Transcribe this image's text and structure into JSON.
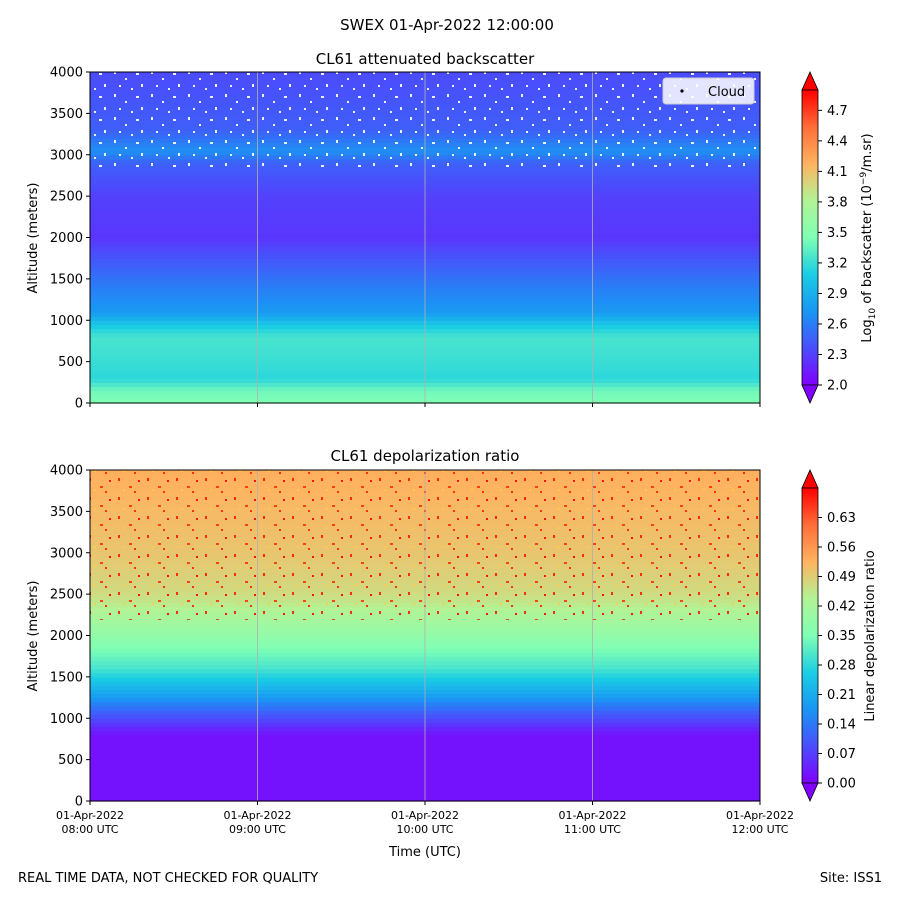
{
  "figure": {
    "suptitle": "SWEX 01-Apr-2022 12:00:00",
    "footer_left": "REAL TIME DATA, NOT CHECKED FOR QUALITY",
    "footer_right": "Site: ISS1"
  },
  "chart_data": [
    {
      "type": "heatmap",
      "title": "CL61 attenuated backscatter",
      "xlabel": "",
      "ylabel": "Altitude (meters)",
      "xlim": [
        "2022-04-01 08:00",
        "2022-04-01 12:00"
      ],
      "ylim": [
        0,
        4000
      ],
      "yticks": [
        0,
        500,
        1000,
        1500,
        2000,
        2500,
        3000,
        3500,
        4000
      ],
      "xticks": [],
      "grid": "vertical lines at x ticks",
      "legend": {
        "position": "top-right",
        "entries": [
          "Cloud"
        ]
      },
      "colorbar": {
        "label": "Log10 of backscatter (10^-9/m.sr)",
        "label_parts": {
          "a": "Log",
          "b": "10",
          "c": " of backscatter (10",
          "d": "−9",
          "e": "/m.sr)"
        },
        "range": [
          2.0,
          4.9
        ],
        "ticks": [
          "2.0",
          "2.3",
          "2.6",
          "2.9",
          "3.2",
          "3.5",
          "3.8",
          "4.1",
          "4.4",
          "4.7"
        ],
        "extend": "both",
        "colormap": "rainbow"
      },
      "profile": [
        {
          "altitude": 0,
          "value": 3.45
        },
        {
          "altitude": 150,
          "value": 3.4
        },
        {
          "altitude": 300,
          "value": 3.15
        },
        {
          "altitude": 500,
          "value": 3.2
        },
        {
          "altitude": 800,
          "value": 3.25
        },
        {
          "altitude": 950,
          "value": 3.05
        },
        {
          "altitude": 1100,
          "value": 2.75
        },
        {
          "altitude": 1500,
          "value": 2.55
        },
        {
          "altitude": 2000,
          "value": 2.25
        },
        {
          "altitude": 2500,
          "value": 2.3
        },
        {
          "altitude": 2900,
          "value": 2.45
        },
        {
          "altitude": 3050,
          "value": 2.7
        },
        {
          "altitude": 3300,
          "value": 2.45
        },
        {
          "altitude": 4000,
          "value": 2.35
        }
      ]
    },
    {
      "type": "heatmap",
      "title": "CL61 depolarization ratio",
      "xlabel": "Time (UTC)",
      "ylabel": "Altitude (meters)",
      "xlim": [
        "2022-04-01 08:00",
        "2022-04-01 12:00"
      ],
      "ylim": [
        0,
        4000
      ],
      "yticks": [
        0,
        500,
        1000,
        1500,
        2000,
        2500,
        3000,
        3500,
        4000
      ],
      "xticks": [
        {
          "line1": "01-Apr-2022",
          "line2": "08:00 UTC"
        },
        {
          "line1": "01-Apr-2022",
          "line2": "09:00 UTC"
        },
        {
          "line1": "01-Apr-2022",
          "line2": "10:00 UTC"
        },
        {
          "line1": "01-Apr-2022",
          "line2": "11:00 UTC"
        },
        {
          "line1": "01-Apr-2022",
          "line2": "12:00 UTC"
        }
      ],
      "grid": "vertical lines at x ticks",
      "colorbar": {
        "label": "Linear depolarization ratio",
        "range": [
          0.0,
          0.7
        ],
        "ticks": [
          "0.00",
          "0.07",
          "0.14",
          "0.21",
          "0.28",
          "0.35",
          "0.42",
          "0.49",
          "0.56",
          "0.63"
        ],
        "extend": "both",
        "colormap": "rainbow"
      },
      "profile": [
        {
          "altitude": 0,
          "value": 0.02
        },
        {
          "altitude": 800,
          "value": 0.02
        },
        {
          "altitude": 1050,
          "value": 0.1
        },
        {
          "altitude": 1300,
          "value": 0.2
        },
        {
          "altitude": 1600,
          "value": 0.3
        },
        {
          "altitude": 2000,
          "value": 0.38
        },
        {
          "altitude": 2500,
          "value": 0.47
        },
        {
          "altitude": 3000,
          "value": 0.5
        },
        {
          "altitude": 4000,
          "value": 0.53
        }
      ]
    }
  ]
}
